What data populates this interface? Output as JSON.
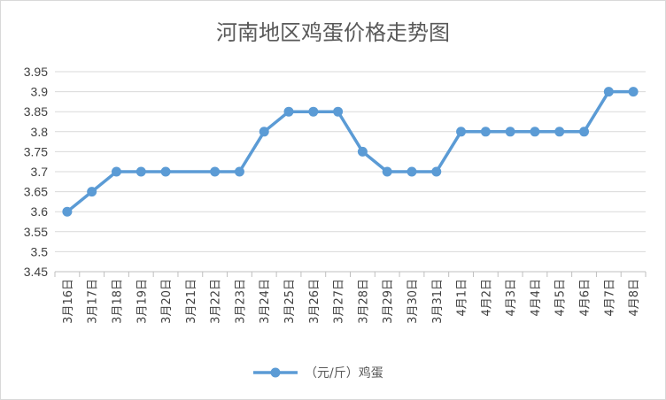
{
  "chart_data": {
    "type": "line",
    "title": "河南地区鸡蛋价格走势图",
    "xlabel": "",
    "ylabel": "",
    "categories": [
      "3月16日",
      "3月17日",
      "3月18日",
      "3月19日",
      "3月20日",
      "3月21日",
      "3月22日",
      "3月23日",
      "3月24日",
      "3月25日",
      "3月26日",
      "3月27日",
      "3月28日",
      "3月29日",
      "3月30日",
      "3月31日",
      "4月1日",
      "4月2日",
      "4月3日",
      "4月4日",
      "4月5日",
      "4月6日",
      "4月7日",
      "4月8日"
    ],
    "series": [
      {
        "name": "（元/斤）鸡蛋",
        "color": "#5b9bd5",
        "values": [
          3.6,
          3.65,
          3.7,
          3.7,
          3.7,
          null,
          3.7,
          3.7,
          3.8,
          3.85,
          3.85,
          3.85,
          3.75,
          3.7,
          3.7,
          3.7,
          3.8,
          3.8,
          3.8,
          3.8,
          3.8,
          3.8,
          3.9,
          3.9
        ]
      }
    ],
    "ylim": [
      3.45,
      3.95
    ],
    "yticks": [
      "3.45",
      "3.5",
      "3.55",
      "3.6",
      "3.65",
      "3.7",
      "3.75",
      "3.8",
      "3.85",
      "3.9",
      "3.95"
    ],
    "grid": true,
    "legend": "bottom"
  }
}
